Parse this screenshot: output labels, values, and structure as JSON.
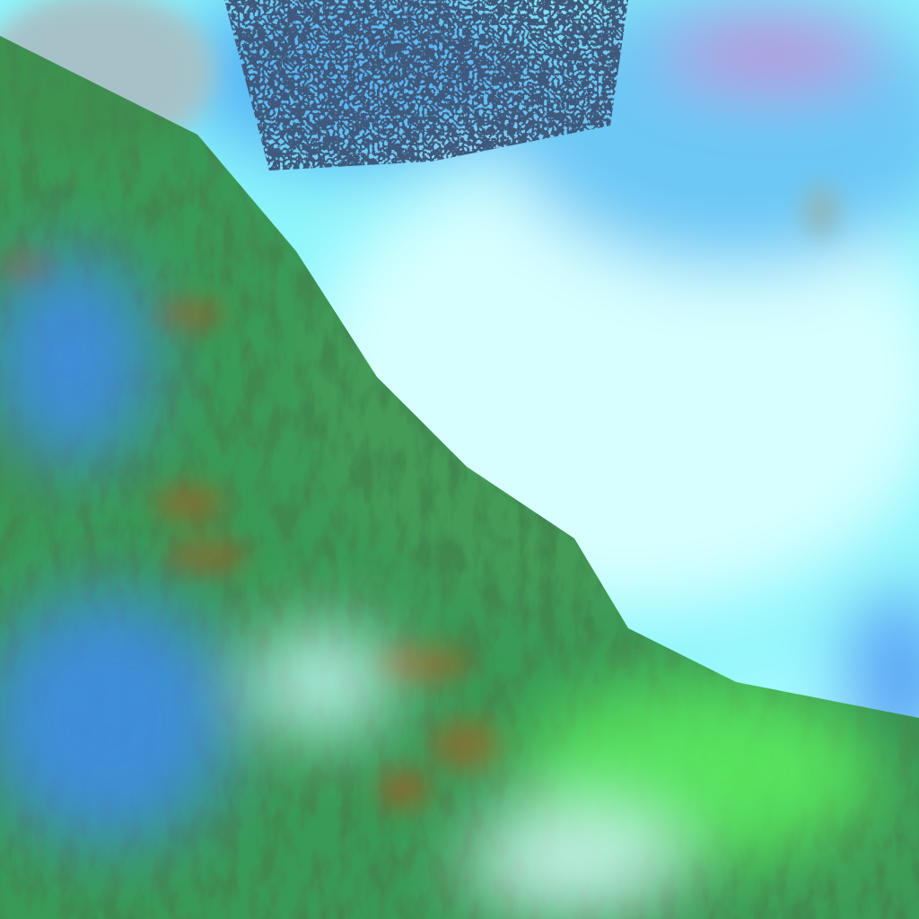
{
  "image": {
    "kind": "false-color satellite imagery",
    "colors": {
      "cloud": "#a8fbff",
      "cloud_bright": "#e6ffff",
      "cloud_blue": "#3f8cf0",
      "snow_cyan": "#4ff0f5",
      "vegetation": "#1f6a1c",
      "vegetation_light": "#38d84a",
      "terrain_brown": "#8a6a2e",
      "water": "#9fbfc8",
      "shadow": "#0d2a1a",
      "haze_pink": "#d06cc0"
    }
  }
}
